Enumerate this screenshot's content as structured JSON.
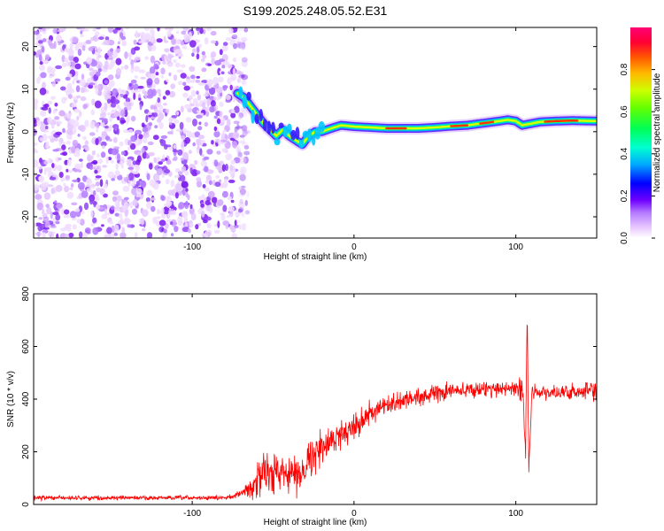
{
  "figure_title": "S199.2025.248.05.52.E31",
  "chart_data": [
    {
      "type": "heatmap",
      "name": "spectrogram",
      "xlabel": "Height of straight line (km)",
      "ylabel": "Frequency (Hz)",
      "xlim": [
        -198,
        150
      ],
      "ylim": [
        -25,
        24.5
      ],
      "xticks": [
        -100,
        0,
        100
      ],
      "yticks": [
        -20,
        -10,
        0,
        10,
        20
      ],
      "noise_region_x": [
        -198,
        -72
      ],
      "ridge": {
        "x": [
          -72,
          -68,
          -64,
          -60,
          -56,
          -52,
          -48,
          -44,
          -40,
          -36,
          -32,
          -28,
          -24,
          -20,
          -14,
          -8,
          0,
          10,
          20,
          30,
          40,
          50,
          60,
          70,
          80,
          90,
          95,
          100,
          104,
          108,
          115,
          125,
          135,
          150
        ],
        "frequency": [
          9,
          8,
          6,
          4,
          2,
          0.5,
          -1,
          0.5,
          -1,
          -2,
          -3,
          -1,
          0,
          0,
          0.8,
          1.5,
          1.2,
          1,
          0.8,
          0.8,
          0.8,
          1,
          1.3,
          1.5,
          2,
          2.5,
          2.8,
          2.5,
          1.5,
          1.8,
          2.3,
          2.5,
          2.6,
          2.5
        ]
      }
    },
    {
      "type": "line",
      "name": "snr",
      "xlabel": "Height of straight line (km)",
      "ylabel": "SNR (10 * v/v)",
      "xlim": [
        -198,
        150
      ],
      "ylim": [
        0,
        800
      ],
      "xticks": [
        -100,
        0,
        100
      ],
      "yticks": [
        0,
        200,
        400,
        600,
        800
      ],
      "line_color": "#ff0000",
      "series": [
        {
          "name": "SNR",
          "x": [
            -198,
            -150,
            -100,
            -80,
            -70,
            -60,
            -55,
            -50,
            -45,
            -40,
            -35,
            -30,
            -25,
            -20,
            -10,
            0,
            10,
            20,
            30,
            40,
            50,
            60,
            70,
            80,
            90,
            100,
            104,
            106,
            107,
            108,
            110,
            120,
            130,
            140,
            150
          ],
          "y": [
            25,
            25,
            25,
            25,
            40,
            80,
            150,
            100,
            140,
            120,
            100,
            160,
            190,
            210,
            260,
            300,
            345,
            370,
            395,
            410,
            420,
            430,
            435,
            438,
            440,
            440,
            460,
            150,
            780,
            130,
            430,
            420,
            425,
            430,
            430
          ],
          "noise": [
            8,
            8,
            8,
            8,
            12,
            70,
            80,
            70,
            60,
            70,
            70,
            70,
            65,
            60,
            55,
            50,
            45,
            40,
            35,
            30,
            30,
            30,
            30,
            30,
            30,
            30,
            80,
            40,
            30,
            30,
            30,
            30,
            30,
            30,
            30
          ]
        }
      ]
    }
  ],
  "colorbar": {
    "label": "Normalized spectral amplitude",
    "ticks": [
      "0.0",
      "0.2",
      "0.4",
      "0.6",
      "0.8"
    ],
    "range": [
      0,
      1
    ],
    "colors": [
      "#ffffff",
      "#e9c8ff",
      "#b57bff",
      "#6f00ff",
      "#0000ff",
      "#00aaff",
      "#00ffd0",
      "#00ff55",
      "#66ff00",
      "#ccff00",
      "#ffbb00",
      "#ff5500",
      "#ff0033",
      "#ff0077"
    ]
  }
}
